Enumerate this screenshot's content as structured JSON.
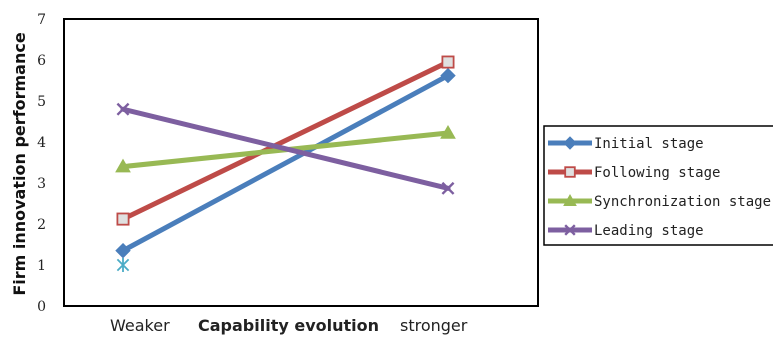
{
  "chart_data": {
    "type": "line",
    "ylabel": "Firm innovation performance",
    "xlabel": "Capability evolution",
    "categories": [
      "Weaker",
      "stronger"
    ],
    "ylim": [
      0,
      7
    ],
    "yticks": [
      "0",
      "1",
      "2",
      "3",
      "4",
      "5",
      "6",
      "7"
    ],
    "grid": false,
    "legend_position": "right",
    "series": [
      {
        "name": "Initial stage",
        "values": [
          1.35,
          5.62
        ],
        "color": "#4a7ebb",
        "marker": "diamond"
      },
      {
        "name": "Following stage",
        "values": [
          2.12,
          5.95
        ],
        "color": "#be4b48",
        "marker": "square-open"
      },
      {
        "name": "Synchronization stage",
        "values": [
          3.4,
          4.22
        ],
        "color": "#98b954",
        "marker": "triangle"
      },
      {
        "name": "Leading stage",
        "values": [
          4.8,
          2.87
        ],
        "color": "#7d5fa0",
        "marker": "x"
      }
    ],
    "extra_point": {
      "category": "Weaker",
      "value": 1.0,
      "color": "#4bacc6",
      "marker": "asterisk"
    }
  }
}
